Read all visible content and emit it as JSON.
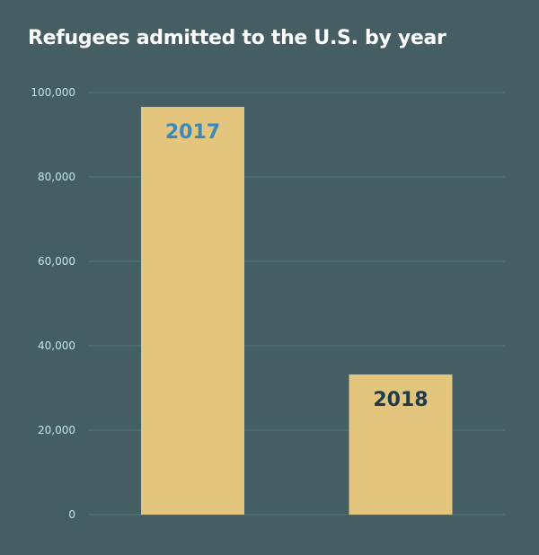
{
  "chart_data": {
    "type": "bar",
    "title": "Refugees admitted to the U.S. by year",
    "categories": [
      "2017",
      "2018"
    ],
    "values": [
      96600,
      33200
    ],
    "xlabel": "",
    "ylabel": "",
    "ylim": [
      0,
      100000
    ],
    "yticks": [
      0,
      20000,
      40000,
      60000,
      80000,
      100000
    ],
    "ytick_labels": [
      "0",
      "20,000",
      "40,000",
      "60,000",
      "80,000",
      "100,000"
    ],
    "grid": true,
    "legend": "none",
    "colors": {
      "bar": "#e4c57e",
      "background": "#455e63",
      "grid": "#587a7e",
      "label_2017": "#3a89b8",
      "label_2018": "#1f3a4d"
    }
  }
}
